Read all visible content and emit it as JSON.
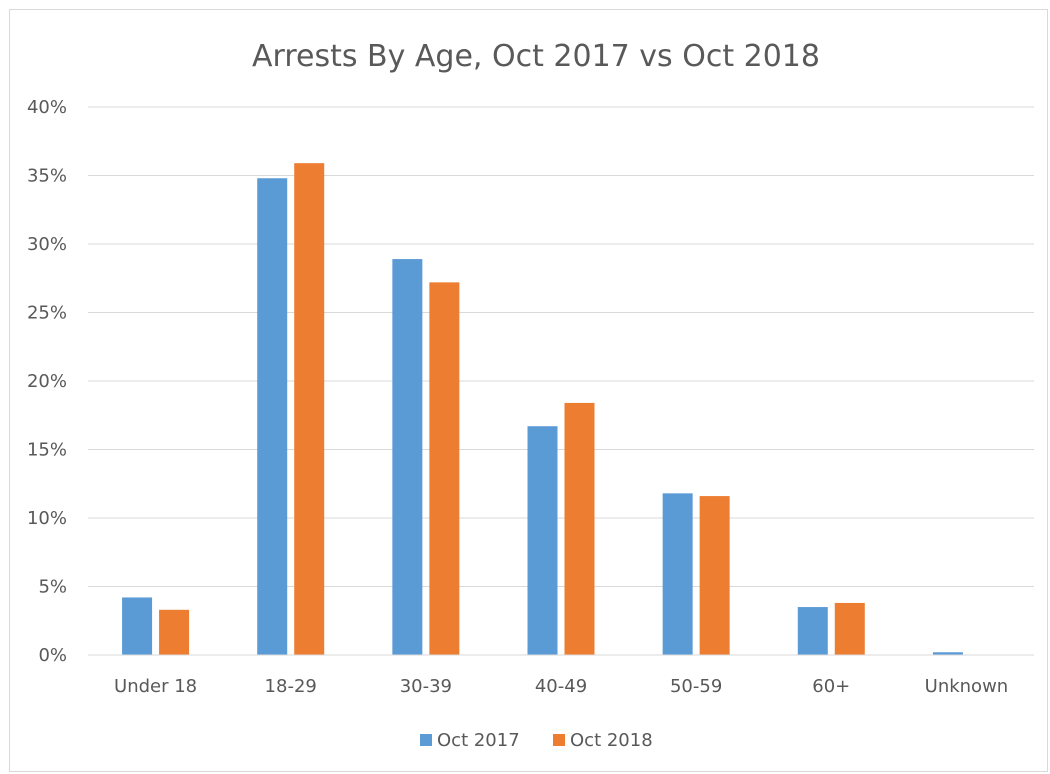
{
  "chart_data": {
    "type": "bar",
    "title": "Arrests By Age, Oct 2017 vs Oct 2018",
    "categories": [
      "Under 18",
      "18-29",
      "30-39",
      "40-49",
      "50-59",
      "60+",
      "Unknown"
    ],
    "series": [
      {
        "name": "Oct 2017",
        "color": "#5b9bd5",
        "values": [
          4.2,
          34.8,
          28.9,
          16.7,
          11.8,
          3.5,
          0.2
        ]
      },
      {
        "name": "Oct 2018",
        "color": "#ed7d31",
        "values": [
          3.3,
          35.9,
          27.2,
          18.4,
          11.6,
          3.8,
          0.0
        ]
      }
    ],
    "yticks": [
      "0%",
      "5%",
      "10%",
      "15%",
      "20%",
      "25%",
      "30%",
      "35%",
      "40%"
    ],
    "ylim": [
      0,
      40
    ],
    "xlabel": "",
    "ylabel": "",
    "grid": true,
    "legend": "bottom"
  }
}
